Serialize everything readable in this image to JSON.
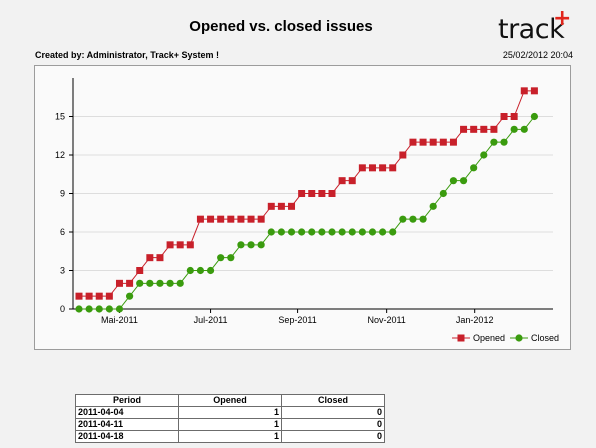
{
  "report": {
    "title": "Opened vs. closed issues",
    "created_by": "Created by: Administrator, Track+ System !",
    "timestamp": "25/02/2012 20:04"
  },
  "logo": {
    "text": "track",
    "plus": "+"
  },
  "colors": {
    "opened": "#c8202a",
    "closed": "#3a9b0e",
    "grid": "#dddddd",
    "axis": "#000000"
  },
  "chart_data": {
    "type": "line",
    "x_ticks": [
      "Mai-2011",
      "Jul-2011",
      "Sep-2011",
      "Nov-2011",
      "Jan-2012"
    ],
    "x_start": "2011-04-04",
    "y_ticks": [
      "0",
      "3",
      "6",
      "9",
      "12",
      "15"
    ],
    "ylim": [
      0,
      18
    ],
    "grid": true,
    "legend": "bottom-right",
    "series": [
      {
        "name": "Opened",
        "marker": "square",
        "values": [
          1,
          1,
          1,
          1,
          2,
          2,
          3,
          4,
          4,
          5,
          5,
          5,
          7,
          7,
          7,
          7,
          7,
          7,
          7,
          8,
          8,
          8,
          9,
          9,
          9,
          9,
          10,
          10,
          11,
          11,
          11,
          11,
          12,
          13,
          13,
          13,
          13,
          13,
          14,
          14,
          14,
          14,
          15,
          15,
          17,
          17
        ]
      },
      {
        "name": "Closed",
        "marker": "circle",
        "values": [
          0,
          0,
          0,
          0,
          0,
          1,
          2,
          2,
          2,
          2,
          2,
          3,
          3,
          3,
          4,
          4,
          5,
          5,
          5,
          6,
          6,
          6,
          6,
          6,
          6,
          6,
          6,
          6,
          6,
          6,
          6,
          6,
          7,
          7,
          7,
          8,
          9,
          10,
          10,
          11,
          12,
          13,
          13,
          14,
          14,
          15
        ]
      }
    ]
  },
  "table": {
    "headers": [
      "Period",
      "Opened",
      "Closed"
    ],
    "rows": [
      [
        "2011-04-04",
        "1",
        "0"
      ],
      [
        "2011-04-11",
        "1",
        "0"
      ],
      [
        "2011-04-18",
        "1",
        "0"
      ]
    ]
  }
}
